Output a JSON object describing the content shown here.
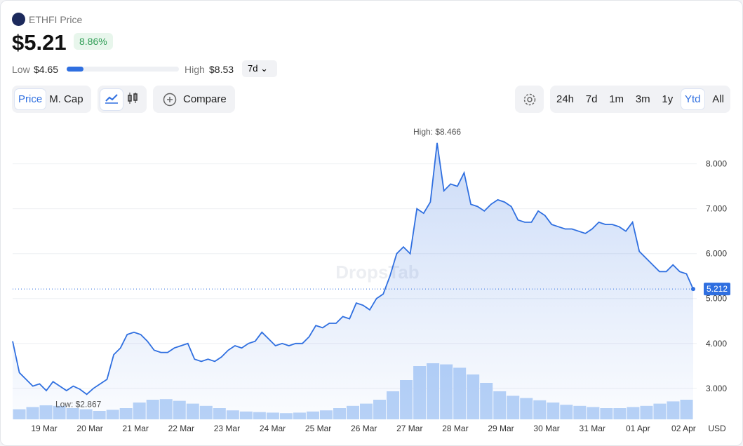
{
  "header": {
    "coin": "ETHFI Price",
    "price": "$5.21",
    "change": "8.86%",
    "low_label": "Low",
    "low": "$4.65",
    "high_label": "High",
    "high": "$8.53",
    "period": "7d"
  },
  "toolbar": {
    "metric_tabs": [
      "Price",
      "M. Cap"
    ],
    "compare": "Compare",
    "ranges": [
      "24h",
      "7d",
      "1m",
      "3m",
      "1y",
      "Ytd",
      "All"
    ],
    "active_range": "Ytd"
  },
  "chart_data": {
    "type": "line",
    "watermark": "DropsTab",
    "currency": "USD",
    "x_labels": [
      "19 Mar",
      "20 Mar",
      "21 Mar",
      "22 Mar",
      "23 Mar",
      "24 Mar",
      "25 Mar",
      "26 Mar",
      "27 Mar",
      "28 Mar",
      "29 Mar",
      "30 Mar",
      "31 Mar",
      "01 Apr",
      "02 Apr"
    ],
    "ylim": [
      2.31,
      8.9
    ],
    "yticks": [
      {
        "value": 3,
        "label": "3.000"
      },
      {
        "value": 4,
        "label": "4.000"
      },
      {
        "value": 5,
        "label": "5.000"
      },
      {
        "value": 6,
        "label": "6.000"
      },
      {
        "value": 7,
        "label": "7.000"
      },
      {
        "value": 8,
        "label": "8.000"
      }
    ],
    "grid": true,
    "series": [
      {
        "color": "#2f6fe0",
        "values": [
          4.05,
          3.35,
          3.2,
          3.05,
          3.1,
          2.95,
          3.15,
          3.05,
          2.95,
          3.05,
          2.98,
          2.867,
          3.0,
          3.1,
          3.2,
          3.75,
          3.9,
          4.2,
          4.25,
          4.2,
          4.05,
          3.85,
          3.8,
          3.8,
          3.9,
          3.95,
          4.0,
          3.65,
          3.6,
          3.65,
          3.6,
          3.7,
          3.85,
          3.95,
          3.9,
          4.0,
          4.05,
          4.25,
          4.1,
          3.95,
          4.0,
          3.95,
          4.0,
          4.0,
          4.15,
          4.4,
          4.35,
          4.45,
          4.45,
          4.6,
          4.55,
          4.9,
          4.85,
          4.75,
          5.0,
          5.1,
          5.5,
          6.0,
          6.15,
          6.0,
          7.0,
          6.9,
          7.15,
          8.466,
          7.4,
          7.55,
          7.5,
          7.8,
          7.1,
          7.05,
          6.95,
          7.1,
          7.2,
          7.15,
          7.05,
          6.75,
          6.7,
          6.7,
          6.95,
          6.85,
          6.65,
          6.6,
          6.55,
          6.55,
          6.5,
          6.45,
          6.55,
          6.7,
          6.65,
          6.65,
          6.6,
          6.5,
          6.7,
          6.05,
          5.9,
          5.75,
          5.6,
          5.6,
          5.75,
          5.6,
          5.55,
          5.212
        ],
        "last_label": "5.212"
      }
    ],
    "annotations": {
      "high": "High: $8.466",
      "low": "Low: $2.867"
    },
    "volume": {
      "color": "#b9d3f7",
      "values": [
        18,
        22,
        25,
        24,
        20,
        18,
        15,
        17,
        20,
        30,
        35,
        36,
        33,
        28,
        24,
        20,
        16,
        14,
        13,
        12,
        11,
        12,
        14,
        16,
        20,
        24,
        28,
        35,
        50,
        70,
        95,
        100,
        98,
        92,
        80,
        65,
        50,
        42,
        38,
        34,
        30,
        26,
        24,
        22,
        20,
        20,
        22,
        24,
        28,
        32,
        35
      ]
    }
  }
}
